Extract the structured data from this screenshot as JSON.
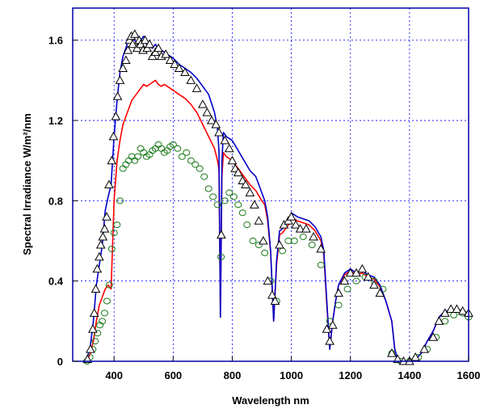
{
  "chart_data": {
    "type": "line",
    "title": "",
    "xlabel": "Wavelength nm",
    "ylabel": "Spectral Irradiance W/m²/nm",
    "xlim": [
      260,
      1600
    ],
    "ylim": [
      0,
      1.76
    ],
    "x_ticks": [
      400,
      600,
      800,
      1000,
      1200,
      1400,
      1600
    ],
    "y_ticks": [
      0,
      0.4,
      0.8,
      1.2,
      1.6
    ],
    "x_tick_labels": [
      "400",
      "600",
      "800",
      "1000",
      "1200",
      "1400",
      "1600"
    ],
    "y_tick_labels": [
      "0",
      "0.4",
      "0.8",
      "1.2",
      "1.6"
    ],
    "grid": true,
    "legend": "none",
    "colors": {
      "blue": "#0000cc",
      "red": "#ff0000",
      "triangles": "#000000",
      "circles": "#1a7a1a",
      "grid": "#0000ff",
      "frame": "#0000aa"
    },
    "series": [
      {
        "color": "blue",
        "style": "line",
        "x": [
          300,
          310,
          320,
          330,
          340,
          350,
          360,
          370,
          380,
          390,
          400,
          410,
          420,
          430,
          440,
          450,
          460,
          470,
          480,
          490,
          500,
          510,
          520,
          530,
          540,
          550,
          560,
          570,
          580,
          590,
          600,
          620,
          640,
          660,
          680,
          700,
          720,
          740,
          750,
          755,
          760,
          765,
          770,
          780,
          800,
          820,
          840,
          860,
          880,
          900,
          910,
          920,
          930,
          940,
          950,
          960,
          970,
          980,
          990,
          1000,
          1020,
          1040,
          1060,
          1080,
          1100,
          1110,
          1120,
          1130,
          1140,
          1150,
          1160,
          1180,
          1200,
          1220,
          1240,
          1260,
          1280,
          1300,
          1320,
          1340,
          1350,
          1360,
          1370,
          1380,
          1390,
          1400,
          1420,
          1440,
          1460,
          1480,
          1500,
          1520,
          1540,
          1560,
          1580,
          1600
        ],
        "y": [
          0.0,
          0.02,
          0.08,
          0.2,
          0.38,
          0.48,
          0.58,
          0.75,
          0.82,
          0.88,
          1.12,
          1.3,
          1.44,
          1.52,
          1.56,
          1.61,
          1.62,
          1.6,
          1.58,
          1.6,
          1.62,
          1.58,
          1.57,
          1.56,
          1.58,
          1.55,
          1.55,
          1.54,
          1.53,
          1.52,
          1.51,
          1.48,
          1.46,
          1.44,
          1.41,
          1.37,
          1.33,
          1.24,
          1.16,
          1.05,
          0.22,
          1.0,
          1.14,
          1.12,
          1.1,
          1.05,
          1.0,
          0.95,
          0.92,
          0.84,
          0.8,
          0.72,
          0.55,
          0.2,
          0.5,
          0.65,
          0.66,
          0.68,
          0.7,
          0.74,
          0.72,
          0.71,
          0.7,
          0.67,
          0.62,
          0.55,
          0.3,
          0.06,
          0.2,
          0.3,
          0.38,
          0.44,
          0.46,
          0.44,
          0.45,
          0.43,
          0.42,
          0.38,
          0.3,
          0.2,
          0.06,
          0.01,
          0.0,
          0.0,
          0.0,
          0.0,
          0.01,
          0.04,
          0.1,
          0.15,
          0.22,
          0.25,
          0.25,
          0.26,
          0.25,
          0.24
        ]
      },
      {
        "color": "red",
        "style": "line",
        "x": [
          300,
          310,
          320,
          330,
          340,
          350,
          360,
          370,
          380,
          390,
          400,
          410,
          420,
          430,
          440,
          450,
          460,
          470,
          480,
          490,
          500,
          510,
          520,
          530,
          540,
          550,
          560,
          570,
          580,
          590,
          600,
          620,
          640,
          660,
          680,
          700,
          720,
          740,
          750,
          755,
          760,
          765,
          770,
          780,
          800,
          820,
          840,
          860,
          880,
          900,
          910,
          920,
          930,
          940,
          950,
          960,
          970,
          980,
          990,
          1000,
          1020,
          1040,
          1060,
          1080,
          1100,
          1110,
          1120,
          1130,
          1140,
          1150,
          1160,
          1180,
          1200,
          1220,
          1240,
          1260,
          1280,
          1300,
          1320,
          1340,
          1350,
          1360,
          1370,
          1380,
          1390,
          1400,
          1420,
          1440,
          1460,
          1480,
          1500,
          1520,
          1540,
          1560,
          1580,
          1600
        ],
        "y": [
          0.0,
          0.01,
          0.04,
          0.1,
          0.2,
          0.28,
          0.32,
          0.36,
          0.38,
          0.36,
          0.8,
          1.0,
          1.1,
          1.18,
          1.22,
          1.26,
          1.3,
          1.32,
          1.34,
          1.36,
          1.38,
          1.37,
          1.38,
          1.39,
          1.4,
          1.38,
          1.37,
          1.38,
          1.37,
          1.36,
          1.35,
          1.33,
          1.31,
          1.28,
          1.24,
          1.18,
          1.12,
          1.06,
          1.0,
          0.96,
          0.22,
          0.92,
          1.04,
          1.02,
          1.0,
          0.96,
          0.92,
          0.88,
          0.85,
          0.8,
          0.78,
          0.7,
          0.54,
          0.2,
          0.48,
          0.63,
          0.64,
          0.66,
          0.68,
          0.72,
          0.7,
          0.69,
          0.68,
          0.65,
          0.6,
          0.53,
          0.28,
          0.06,
          0.2,
          0.3,
          0.38,
          0.43,
          0.45,
          0.43,
          0.44,
          0.42,
          0.41,
          0.37,
          0.3,
          0.2,
          0.06,
          0.01,
          0.0,
          0.0,
          0.0,
          0.0,
          0.01,
          0.04,
          0.1,
          0.15,
          0.22,
          0.25,
          0.25,
          0.26,
          0.25,
          0.24
        ]
      },
      {
        "color": "triangles",
        "style": "triangle-marker",
        "x": [
          310,
          320,
          328,
          333,
          338,
          343,
          350,
          355,
          362,
          368,
          375,
          383,
          392,
          398,
          406,
          412,
          420,
          430,
          440,
          447,
          452,
          458,
          463,
          470,
          478,
          485,
          490,
          498,
          505,
          512,
          520,
          530,
          540,
          550,
          560,
          575,
          590,
          605,
          620,
          640,
          660,
          680,
          700,
          715,
          730,
          745,
          755,
          763,
          775,
          790,
          800,
          810,
          820,
          835,
          845,
          860,
          875,
          890,
          905,
          920,
          935,
          945,
          960,
          975,
          990,
          1000,
          1015,
          1030,
          1050,
          1075,
          1100,
          1120,
          1130,
          1140,
          1160,
          1180,
          1200,
          1220,
          1240,
          1260,
          1280,
          1300,
          1340,
          1360,
          1380,
          1400,
          1420,
          1450,
          1480,
          1500,
          1520,
          1540,
          1560,
          1580,
          1600
        ],
        "y": [
          0.01,
          0.06,
          0.16,
          0.24,
          0.36,
          0.46,
          0.52,
          0.58,
          0.62,
          0.66,
          0.72,
          0.88,
          1.0,
          1.12,
          1.22,
          1.32,
          1.4,
          1.46,
          1.5,
          1.55,
          1.6,
          1.62,
          1.58,
          1.63,
          1.56,
          1.6,
          1.58,
          1.55,
          1.6,
          1.56,
          1.58,
          1.52,
          1.54,
          1.56,
          1.52,
          1.53,
          1.5,
          1.48,
          1.46,
          1.44,
          1.4,
          1.36,
          1.28,
          1.24,
          1.2,
          1.18,
          1.14,
          0.63,
          1.1,
          1.06,
          1.0,
          0.96,
          0.94,
          0.9,
          0.88,
          0.84,
          0.78,
          0.7,
          0.6,
          0.4,
          0.33,
          0.3,
          0.58,
          0.68,
          0.7,
          0.72,
          0.68,
          0.66,
          0.66,
          0.62,
          0.56,
          0.16,
          0.1,
          0.18,
          0.34,
          0.4,
          0.44,
          0.44,
          0.46,
          0.42,
          0.38,
          0.34,
          0.04,
          0.01,
          0.0,
          0.0,
          0.02,
          0.06,
          0.12,
          0.2,
          0.24,
          0.26,
          0.26,
          0.25,
          0.24
        ]
      },
      {
        "color": "circles",
        "style": "circle-marker",
        "x": [
          308,
          318,
          328,
          336,
          344,
          352,
          360,
          368,
          376,
          384,
          392,
          400,
          410,
          420,
          430,
          440,
          450,
          460,
          470,
          480,
          490,
          500,
          510,
          520,
          530,
          540,
          550,
          560,
          570,
          580,
          590,
          600,
          615,
          630,
          645,
          660,
          675,
          690,
          705,
          720,
          735,
          750,
          762,
          775,
          790,
          805,
          820,
          835,
          850,
          870,
          890,
          910,
          930,
          950,
          970,
          990,
          1010,
          1040,
          1070,
          1100,
          1130,
          1160,
          1190,
          1220,
          1250,
          1280,
          1310,
          1340,
          1370,
          1400,
          1430,
          1460,
          1490,
          1520,
          1550,
          1580,
          1600
        ],
        "y": [
          0.0,
          0.02,
          0.06,
          0.1,
          0.14,
          0.18,
          0.2,
          0.24,
          0.3,
          0.38,
          0.56,
          0.64,
          0.68,
          0.8,
          0.96,
          0.98,
          1.0,
          1.02,
          1.0,
          1.02,
          1.06,
          1.04,
          1.02,
          1.03,
          1.05,
          1.06,
          1.08,
          1.06,
          1.04,
          1.05,
          1.07,
          1.08,
          1.06,
          1.02,
          1.04,
          1.0,
          0.98,
          0.96,
          0.92,
          0.86,
          0.82,
          0.78,
          0.52,
          0.8,
          0.84,
          0.82,
          0.78,
          0.74,
          0.68,
          0.6,
          0.58,
          0.54,
          0.4,
          0.3,
          0.55,
          0.6,
          0.6,
          0.62,
          0.58,
          0.48,
          0.2,
          0.28,
          0.36,
          0.4,
          0.42,
          0.4,
          0.36,
          0.04,
          0.0,
          0.0,
          0.02,
          0.06,
          0.12,
          0.2,
          0.23,
          0.24,
          0.22
        ]
      }
    ]
  }
}
